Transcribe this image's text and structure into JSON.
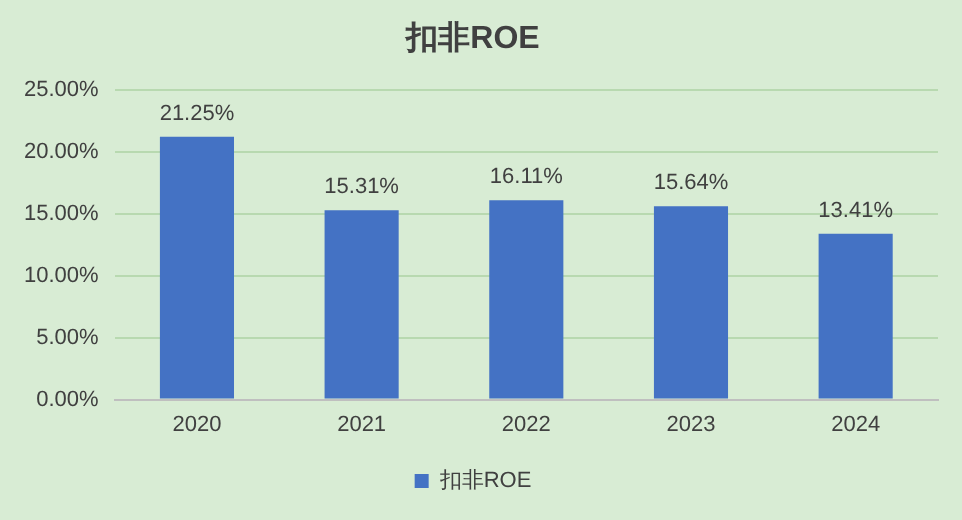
{
  "chart_data": {
    "type": "bar",
    "title": "扣非ROE",
    "categories": [
      "2020",
      "2021",
      "2022",
      "2023",
      "2024"
    ],
    "series": [
      {
        "name": "扣非ROE",
        "color": "#4472c4",
        "values": [
          21.25,
          15.31,
          16.11,
          15.64,
          13.41
        ],
        "value_labels": [
          "21.25%",
          "15.31%",
          "16.11%",
          "15.64%",
          "13.41%"
        ]
      }
    ],
    "ylim": [
      0,
      25
    ],
    "yticks": [
      {
        "value": 0,
        "label": "0.00%"
      },
      {
        "value": 5,
        "label": "5.00%"
      },
      {
        "value": 10,
        "label": "10.00%"
      },
      {
        "value": 15,
        "label": "15.00%"
      },
      {
        "value": 20,
        "label": "20.00%"
      },
      {
        "value": 25,
        "label": "25.00%"
      }
    ],
    "grid": "y",
    "legend": "bottom"
  }
}
